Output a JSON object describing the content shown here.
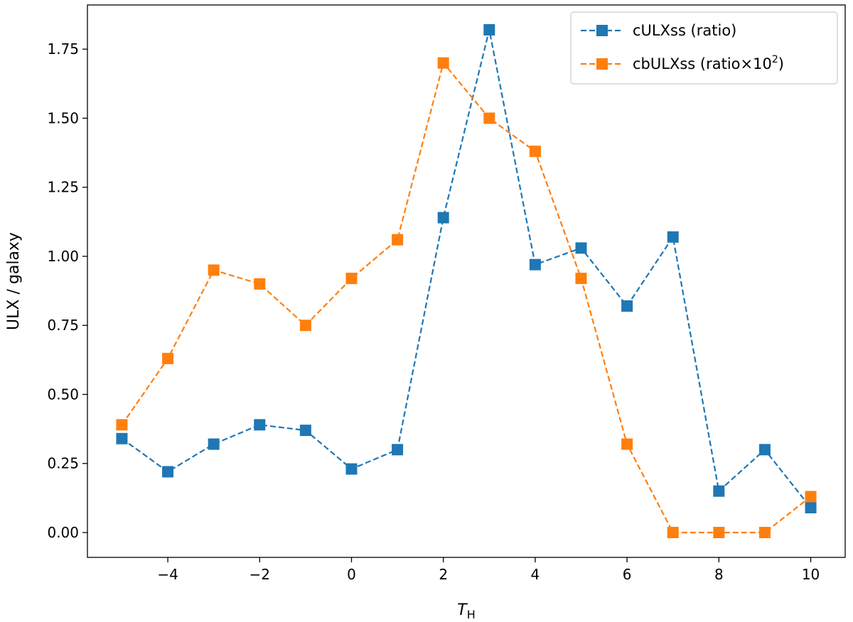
{
  "chart_data": {
    "type": "line",
    "title": "",
    "xlabel": "T",
    "xlabel_sub": "H",
    "ylabel": "ULX / galaxy",
    "xlim": [
      -5.75,
      10.75
    ],
    "ylim": [
      -0.09,
      1.91
    ],
    "xticks": [
      -4,
      -2,
      0,
      2,
      4,
      6,
      8,
      10
    ],
    "xtick_labels": [
      "−4",
      "−2",
      "0",
      "2",
      "4",
      "6",
      "8",
      "10"
    ],
    "yticks": [
      0.0,
      0.25,
      0.5,
      0.75,
      1.0,
      1.25,
      1.5,
      1.75
    ],
    "ytick_labels": [
      "0.00",
      "0.25",
      "0.50",
      "0.75",
      "1.00",
      "1.25",
      "1.50",
      "1.75"
    ],
    "grid": false,
    "legend_position": "top-right",
    "x": [
      -5,
      -4,
      -3,
      -2,
      -1,
      0,
      1,
      2,
      3,
      4,
      5,
      6,
      7,
      8,
      9,
      10
    ],
    "series": [
      {
        "name": "cULXss (ratio)",
        "color": "#1f77b4",
        "line_style": "dashed",
        "marker": "square",
        "values": [
          0.34,
          0.22,
          0.32,
          0.39,
          0.37,
          0.23,
          0.3,
          1.14,
          1.82,
          0.97,
          1.03,
          0.82,
          1.07,
          0.15,
          0.3,
          0.09
        ]
      },
      {
        "name": "cbULXss (ratio×10",
        "name_sup": "2",
        "name_suffix": ")",
        "color": "#ff7f0e",
        "line_style": "dashed",
        "marker": "square",
        "values": [
          0.39,
          0.63,
          0.95,
          0.9,
          0.75,
          0.92,
          1.06,
          1.7,
          1.5,
          1.38,
          0.92,
          0.32,
          0.0,
          0.0,
          0.0,
          0.13
        ]
      }
    ]
  }
}
